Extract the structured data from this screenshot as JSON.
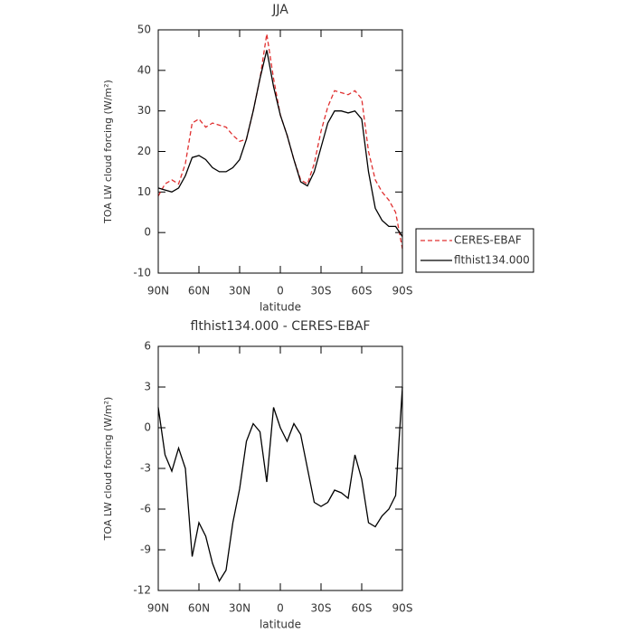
{
  "chart_data": [
    {
      "type": "line",
      "title": "JJA",
      "xlabel": "latitude",
      "ylabel": "TOA LW cloud forcing (W/m²)",
      "x": [
        90,
        85,
        80,
        75,
        70,
        65,
        60,
        55,
        50,
        45,
        40,
        35,
        30,
        25,
        20,
        15,
        10,
        5,
        0,
        -5,
        -10,
        -15,
        -20,
        -25,
        -30,
        -35,
        -40,
        -45,
        -50,
        -55,
        -60,
        -65,
        -70,
        -75,
        -80,
        -85,
        -90
      ],
      "series": [
        {
          "name": "CERES-EBAF",
          "color": "#e03030",
          "dashed": true,
          "values": [
            9,
            12,
            13,
            12,
            17,
            27,
            28,
            26,
            27,
            26.5,
            26,
            24,
            22.5,
            23,
            30,
            38,
            49,
            38,
            29,
            24,
            18,
            13,
            12,
            17,
            25,
            31,
            35,
            34.5,
            34,
            35,
            33,
            20,
            13,
            10,
            8,
            5,
            -4
          ]
        },
        {
          "name": "flthist134.000",
          "color": "#000000",
          "dashed": false,
          "values": [
            11,
            10.5,
            10,
            11,
            14,
            18.5,
            19,
            18,
            16,
            15,
            15,
            16,
            18,
            23,
            30,
            38,
            45,
            36,
            29,
            24,
            18,
            12.5,
            11.5,
            15,
            21,
            27,
            30,
            30,
            29.5,
            30,
            28,
            15,
            6,
            3,
            1.5,
            1.5,
            -1
          ]
        }
      ],
      "xlim": [
        90,
        -90
      ],
      "xticks": [
        {
          "value": 90,
          "label": "90N"
        },
        {
          "value": 60,
          "label": "60N"
        },
        {
          "value": 30,
          "label": "30N"
        },
        0,
        {
          "value": -30,
          "label": "30S"
        },
        {
          "value": -60,
          "label": "60S"
        },
        {
          "value": -90,
          "label": "90S"
        }
      ],
      "ylim": [
        -10,
        50
      ],
      "yticks": [
        -10,
        0,
        10,
        20,
        30,
        40,
        50
      ],
      "legend": "right"
    },
    {
      "type": "line",
      "title": "flthist134.000 - CERES-EBAF",
      "xlabel": "latitude",
      "ylabel": "TOA LW cloud forcing (W/m²)",
      "x": [
        90,
        85,
        80,
        75,
        70,
        65,
        60,
        55,
        50,
        45,
        40,
        35,
        30,
        25,
        20,
        15,
        10,
        5,
        0,
        -5,
        -10,
        -15,
        -20,
        -25,
        -30,
        -35,
        -40,
        -45,
        -50,
        -55,
        -60,
        -65,
        -70,
        -75,
        -80,
        -85,
        -90
      ],
      "series": [
        {
          "color": "#000000",
          "dashed": false,
          "values": [
            1.5,
            -2,
            -3.2,
            -1.5,
            -3,
            -9.5,
            -7,
            -8,
            -10,
            -11.3,
            -10.5,
            -7,
            -4.5,
            -1,
            0.3,
            -0.3,
            -4,
            1.5,
            0,
            -1,
            0.3,
            -0.5,
            -3,
            -5.5,
            -5.8,
            -5.5,
            -4.6,
            -4.8,
            -5.2,
            -2,
            -3.8,
            -7,
            -7.3,
            -6.5,
            -6,
            -5,
            3
          ]
        }
      ],
      "xlim": [
        90,
        -90
      ],
      "xticks": [
        {
          "value": 90,
          "label": "90N"
        },
        {
          "value": 60,
          "label": "60N"
        },
        {
          "value": 30,
          "label": "30N"
        },
        0,
        {
          "value": -30,
          "label": "30S"
        },
        {
          "value": -60,
          "label": "60S"
        },
        {
          "value": -90,
          "label": "90S"
        }
      ],
      "ylim": [
        -12,
        6
      ],
      "yticks": [
        -12,
        -9,
        -6,
        -3,
        0,
        3,
        6
      ]
    }
  ]
}
